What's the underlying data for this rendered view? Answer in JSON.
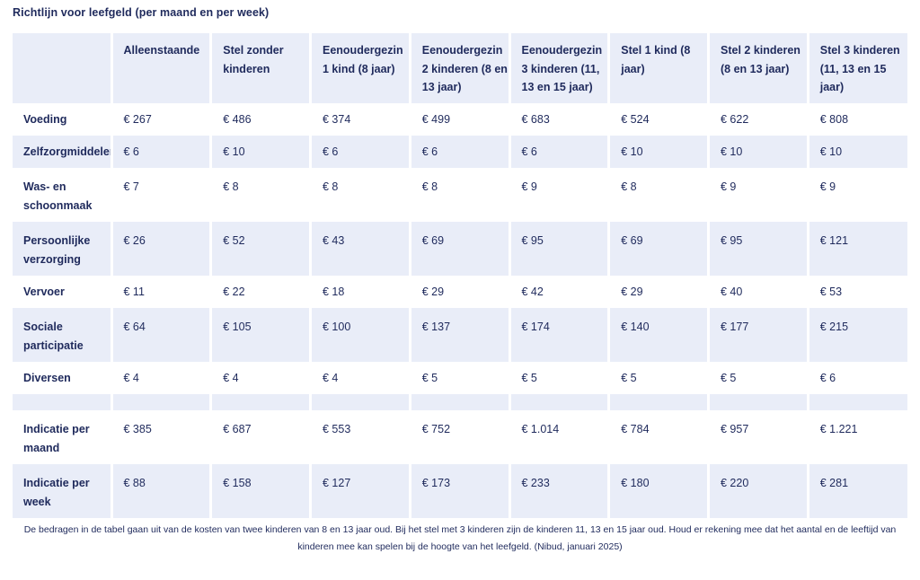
{
  "title": "Richtlijn voor leefgeld (per maand en per week)",
  "columns": [
    "",
    "Alleenstaande",
    "Stel zonder kinderen",
    "Eenoudergezin 1 kind (8 jaar)",
    "Eenoudergezin 2 kinderen (8 en 13 jaar)",
    "Eenoudergezin 3 kinderen (11, 13 en 15 jaar)",
    "Stel 1 kind (8 jaar)",
    "Stel 2 kinderen (8 en 13 jaar)",
    "Stel 3 kinderen (11, 13 en 15 jaar)"
  ],
  "rows": [
    {
      "label": "Voeding",
      "values": [
        "€ 267",
        "€ 486",
        "€ 374",
        "€ 499",
        "€ 683",
        "€ 524",
        "€ 622",
        "€ 808"
      ]
    },
    {
      "label": "Zelfzorgmiddelen",
      "values": [
        "€ 6",
        "€ 10",
        "€ 6",
        "€ 6",
        "€ 6",
        "€ 10",
        "€ 10",
        "€ 10"
      ]
    },
    {
      "label": "Was- en schoonmaak",
      "values": [
        "€ 7",
        "€ 8",
        "€ 8",
        "€ 8",
        "€ 9",
        "€ 8",
        "€ 9",
        "€ 9"
      ]
    },
    {
      "label": "Persoonlijke verzorging",
      "values": [
        "€ 26",
        "€ 52",
        "€ 43",
        "€ 69",
        "€ 95",
        "€ 69",
        "€ 95",
        "€ 121"
      ]
    },
    {
      "label": "Vervoer",
      "values": [
        "€ 11",
        "€ 22",
        "€ 18",
        "€ 29",
        "€ 42",
        "€ 29",
        "€ 40",
        "€ 53"
      ]
    },
    {
      "label": "Sociale participatie",
      "values": [
        "€ 64",
        "€ 105",
        "€ 100",
        "€ 137",
        "€ 174",
        "€ 140",
        "€ 177",
        "€ 215"
      ]
    },
    {
      "label": "Diversen",
      "values": [
        "€ 4",
        "€ 4",
        "€ 4",
        "€ 5",
        "€ 5",
        "€ 5",
        "€ 5",
        "€ 6"
      ]
    },
    {
      "label": "Indicatie per maand",
      "values": [
        "€ 385",
        "€ 687",
        "€ 553",
        "€ 752",
        "€ 1.014",
        "€ 784",
        "€ 957",
        "€ 1.221"
      ]
    },
    {
      "label": "Indicatie per week",
      "values": [
        "€ 88",
        "€ 158",
        "€ 127",
        "€ 173",
        "€ 233",
        "€ 180",
        "€ 220",
        "€ 281"
      ]
    }
  ],
  "footnote": "De bedragen in de tabel gaan uit van de kosten van twee kinderen van 8 en 13 jaar oud. Bij het stel met 3 kinderen zijn de kinderen 11, 13 en 15 jaar oud. Houd er rekening mee dat het aantal en de leeftijd van kinderen mee kan spelen bij de hoogte van het leefgeld. (Nibud, januari 2025)"
}
